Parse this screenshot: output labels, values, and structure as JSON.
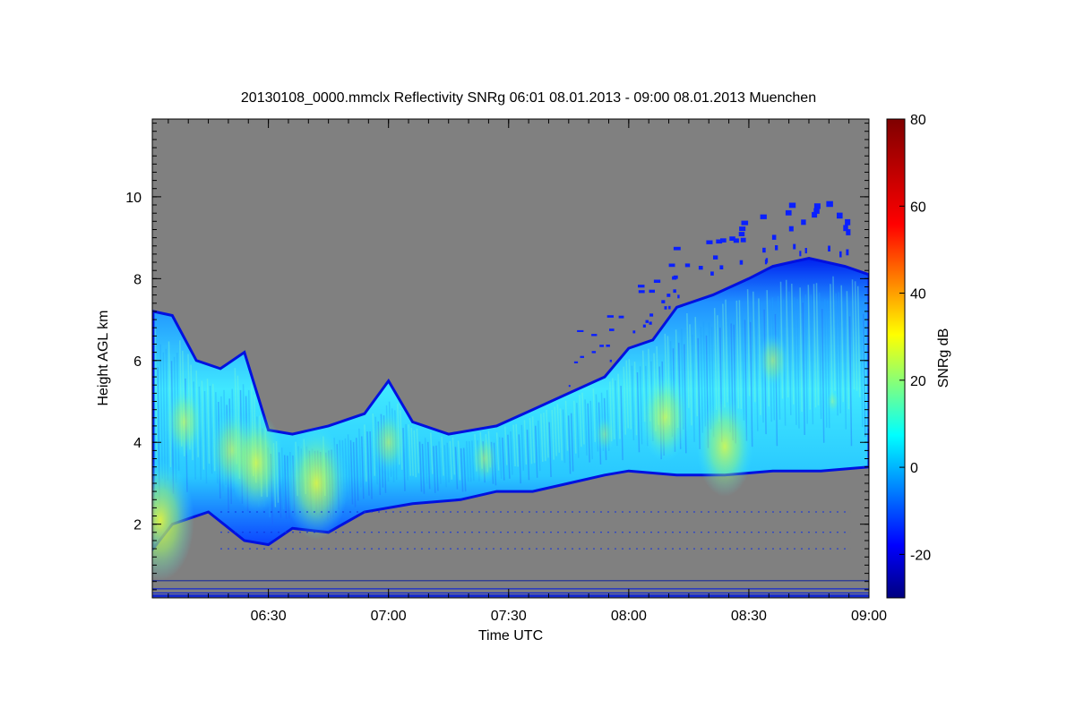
{
  "chart_data": {
    "type": "heatmap",
    "title": "20130108_0000.mmclx Reflectivity SNRg   06:01 08.01.2013 - 09:00 08.01.2013 Muenchen",
    "xlabel": "Time UTC",
    "ylabel": "Height AGL km",
    "x_range": [
      "06:01",
      "09:00"
    ],
    "xlim": [
      6.0167,
      9.0
    ],
    "ylim": [
      0.2,
      11.9
    ],
    "x_ticks": [
      {
        "label": "06:30",
        "value": 6.5
      },
      {
        "label": "07:00",
        "value": 7.0
      },
      {
        "label": "07:30",
        "value": 7.5
      },
      {
        "label": "08:00",
        "value": 8.0
      },
      {
        "label": "08:30",
        "value": 8.5
      },
      {
        "label": "09:00",
        "value": 9.0
      }
    ],
    "y_ticks": [
      {
        "label": "2",
        "value": 2
      },
      {
        "label": "4",
        "value": 4
      },
      {
        "label": "6",
        "value": 6
      },
      {
        "label": "8",
        "value": 8
      },
      {
        "label": "10",
        "value": 10
      }
    ],
    "colorbar": {
      "label": "SNRg dB",
      "min": -30,
      "max": 80,
      "colormap": "jet",
      "ticks": [
        {
          "label": "-20",
          "value": -20
        },
        {
          "label": "0",
          "value": 0
        },
        {
          "label": "20",
          "value": 20
        },
        {
          "label": "40",
          "value": 40
        },
        {
          "label": "60",
          "value": 60
        },
        {
          "label": "80",
          "value": 80
        }
      ]
    },
    "background_color": "#808080",
    "cloud_base_km": [
      [
        6.02,
        1.4
      ],
      [
        6.1,
        2.0
      ],
      [
        6.25,
        2.3
      ],
      [
        6.4,
        1.6
      ],
      [
        6.5,
        1.5
      ],
      [
        6.6,
        1.9
      ],
      [
        6.75,
        1.8
      ],
      [
        6.9,
        2.3
      ],
      [
        7.1,
        2.5
      ],
      [
        7.3,
        2.6
      ],
      [
        7.45,
        2.8
      ],
      [
        7.6,
        2.8
      ],
      [
        7.75,
        3.0
      ],
      [
        7.9,
        3.2
      ],
      [
        8.0,
        3.3
      ],
      [
        8.2,
        3.2
      ],
      [
        8.4,
        3.2
      ],
      [
        8.6,
        3.3
      ],
      [
        8.8,
        3.3
      ],
      [
        9.0,
        3.4
      ]
    ],
    "cloud_top_km": [
      [
        6.02,
        7.2
      ],
      [
        6.1,
        7.1
      ],
      [
        6.2,
        6.0
      ],
      [
        6.3,
        5.8
      ],
      [
        6.4,
        6.2
      ],
      [
        6.5,
        4.3
      ],
      [
        6.6,
        4.2
      ],
      [
        6.75,
        4.4
      ],
      [
        6.9,
        4.7
      ],
      [
        7.0,
        5.5
      ],
      [
        7.1,
        4.5
      ],
      [
        7.25,
        4.2
      ],
      [
        7.45,
        4.4
      ],
      [
        7.6,
        4.8
      ],
      [
        7.75,
        5.2
      ],
      [
        7.9,
        5.6
      ],
      [
        8.0,
        6.3
      ],
      [
        8.1,
        6.5
      ],
      [
        8.2,
        7.3
      ],
      [
        8.35,
        7.6
      ],
      [
        8.5,
        8.0
      ],
      [
        8.6,
        8.3
      ],
      [
        8.75,
        8.5
      ],
      [
        8.9,
        8.3
      ],
      [
        9.0,
        8.1
      ]
    ],
    "cells": [
      {
        "t": 6.05,
        "h": 2.1,
        "v": 38
      },
      {
        "t": 6.15,
        "h": 4.5,
        "v": 18
      },
      {
        "t": 6.35,
        "h": 3.8,
        "v": 22
      },
      {
        "t": 6.45,
        "h": 3.5,
        "v": 30
      },
      {
        "t": 6.7,
        "h": 3.0,
        "v": 35
      },
      {
        "t": 7.0,
        "h": 4.0,
        "v": 15
      },
      {
        "t": 7.4,
        "h": 3.6,
        "v": 10
      },
      {
        "t": 7.9,
        "h": 4.2,
        "v": 5
      },
      {
        "t": 8.15,
        "h": 4.6,
        "v": 25
      },
      {
        "t": 8.4,
        "h": 3.9,
        "v": 30
      },
      {
        "t": 8.6,
        "h": 6.0,
        "v": 12
      },
      {
        "t": 8.85,
        "h": 5.0,
        "v": 0
      }
    ]
  }
}
